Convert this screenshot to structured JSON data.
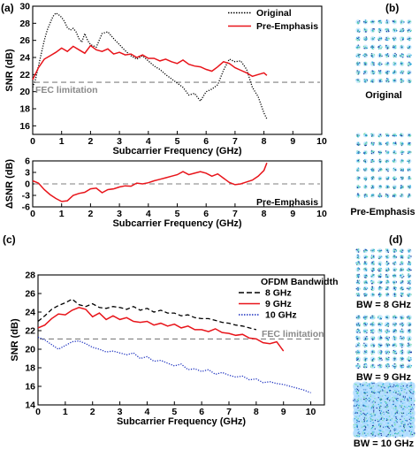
{
  "panel_labels": {
    "a": "(a)",
    "b": "(b)",
    "c": "(c)",
    "d": "(d)"
  },
  "colors": {
    "original": "#000000",
    "pre_emphasis": "#e8141a",
    "bw8": "#000000",
    "bw9": "#e8141a",
    "bw10": "#1a2fbf",
    "fec": "#7f7f7f",
    "fec_text": "#8a8a8a"
  },
  "chart_data": [
    {
      "id": "a-top",
      "type": "line",
      "xlabel": "Subcarrier Frequency (GHz)",
      "ylabel": "SNR (dB)",
      "xlim": [
        0,
        10
      ],
      "ylim": [
        15,
        30
      ],
      "xticks": [
        0,
        1,
        2,
        3,
        4,
        5,
        6,
        7,
        8,
        9,
        10
      ],
      "yticks": [
        16,
        18,
        20,
        22,
        24,
        26,
        28,
        30
      ],
      "legend": "top-right",
      "annotation": "FEC limitation",
      "fec": 21.1,
      "series": [
        {
          "name": "Original",
          "style": "dotted",
          "color": "#000000",
          "x": [
            0.0,
            0.1,
            0.2,
            0.3,
            0.4,
            0.5,
            0.6,
            0.7,
            0.8,
            0.9,
            1.0,
            1.1,
            1.2,
            1.3,
            1.4,
            1.5,
            1.6,
            1.7,
            1.8,
            1.9,
            2.0,
            2.2,
            2.4,
            2.6,
            2.8,
            3.0,
            3.2,
            3.4,
            3.6,
            3.8,
            4.0,
            4.2,
            4.4,
            4.6,
            4.8,
            5.0,
            5.2,
            5.4,
            5.6,
            5.8,
            6.0,
            6.2,
            6.4,
            6.6,
            6.8,
            7.0,
            7.2,
            7.4,
            7.6,
            7.8,
            8.0,
            8.1
          ],
          "y": [
            20.5,
            21.5,
            23.0,
            24.5,
            26.0,
            27.2,
            28.0,
            28.8,
            29.2,
            29.0,
            28.7,
            28.2,
            27.5,
            27.2,
            27.4,
            27.0,
            26.2,
            25.8,
            26.8,
            26.0,
            25.5,
            25.2,
            26.8,
            27.0,
            26.2,
            25.5,
            24.8,
            24.2,
            23.8,
            24.2,
            23.6,
            23.0,
            22.6,
            22.0,
            21.5,
            21.0,
            20.5,
            19.6,
            19.8,
            18.9,
            20.0,
            20.3,
            20.8,
            22.5,
            23.8,
            23.5,
            23.6,
            22.6,
            20.5,
            19.4,
            17.5,
            16.8
          ]
        },
        {
          "name": "Pre-Emphasis",
          "style": "solid",
          "color": "#e8141a",
          "x": [
            0.0,
            0.2,
            0.4,
            0.6,
            0.8,
            1.0,
            1.2,
            1.4,
            1.6,
            1.8,
            2.0,
            2.2,
            2.4,
            2.6,
            2.8,
            3.0,
            3.2,
            3.4,
            3.6,
            3.8,
            4.0,
            4.2,
            4.4,
            4.6,
            4.8,
            5.0,
            5.2,
            5.4,
            5.6,
            5.8,
            6.0,
            6.2,
            6.4,
            6.6,
            6.8,
            7.0,
            7.2,
            7.4,
            7.6,
            7.8,
            8.0,
            8.1
          ],
          "y": [
            21.4,
            22.8,
            23.8,
            24.2,
            24.6,
            25.1,
            24.7,
            25.3,
            24.9,
            24.5,
            25.4,
            24.9,
            24.7,
            25.0,
            24.4,
            24.6,
            24.3,
            24.4,
            24.0,
            24.3,
            23.9,
            23.9,
            23.6,
            23.8,
            23.5,
            23.3,
            23.7,
            23.2,
            23.0,
            22.9,
            22.6,
            22.4,
            22.9,
            23.5,
            23.3,
            22.8,
            22.5,
            22.2,
            21.8,
            22.0,
            22.2,
            21.9
          ]
        }
      ]
    },
    {
      "id": "a-bottom",
      "type": "line",
      "xlabel": "Subcarrier Frequency (GHz)",
      "ylabel": "ΔSNR (dB)",
      "xlim": [
        0,
        10
      ],
      "ylim": [
        -6,
        6
      ],
      "xticks": [
        0,
        1,
        2,
        3,
        4,
        5,
        6,
        7,
        8,
        9,
        10
      ],
      "yticks": [
        -6,
        -3,
        0,
        3,
        6
      ],
      "annotation": "Pre-Emphasis",
      "series": [
        {
          "name": "",
          "style": "solid",
          "color": "#e8141a",
          "x": [
            0.0,
            0.2,
            0.4,
            0.6,
            0.8,
            1.0,
            1.2,
            1.4,
            1.6,
            1.8,
            2.0,
            2.2,
            2.4,
            2.6,
            2.8,
            3.0,
            3.2,
            3.4,
            3.6,
            3.8,
            4.0,
            4.2,
            4.4,
            4.6,
            4.8,
            5.0,
            5.2,
            5.4,
            5.6,
            5.8,
            6.0,
            6.2,
            6.4,
            6.6,
            6.8,
            7.0,
            7.2,
            7.4,
            7.6,
            7.8,
            8.0,
            8.1
          ],
          "y": [
            0.8,
            0.2,
            -1.5,
            -2.8,
            -3.8,
            -4.6,
            -4.4,
            -3.0,
            -2.5,
            -2.2,
            -1.3,
            -1.1,
            -2.3,
            -1.5,
            -1.3,
            -0.8,
            -0.5,
            -0.6,
            0.2,
            0.0,
            0.3,
            0.8,
            1.2,
            1.6,
            2.0,
            2.4,
            3.2,
            2.4,
            2.8,
            3.2,
            2.8,
            2.0,
            2.6,
            1.5,
            0.4,
            -0.2,
            0.0,
            0.5,
            1.0,
            2.0,
            3.5,
            5.5
          ]
        }
      ]
    },
    {
      "id": "c",
      "type": "line",
      "xlabel": "Subcarrier Frequency (GHz)",
      "ylabel": "SNR (dB)",
      "xlim": [
        0,
        10.5
      ],
      "ylim": [
        14,
        28
      ],
      "xticks": [
        0,
        1,
        2,
        3,
        4,
        5,
        6,
        7,
        8,
        9,
        10
      ],
      "yticks": [
        14,
        16,
        18,
        20,
        22,
        24,
        26,
        28
      ],
      "legend": "top-right",
      "legend_title": "OFDM Bandwidth",
      "annotation": "FEC limitation",
      "fec": 21.1,
      "series": [
        {
          "name": "8 GHz",
          "style": "dashed",
          "color": "#000000",
          "x": [
            0.0,
            0.25,
            0.5,
            0.75,
            1.0,
            1.25,
            1.5,
            1.75,
            2.0,
            2.25,
            2.5,
            2.75,
            3.0,
            3.25,
            3.5,
            3.75,
            4.0,
            4.25,
            4.5,
            4.75,
            5.0,
            5.25,
            5.5,
            5.75,
            6.0,
            6.25,
            6.5,
            6.75,
            7.0,
            7.25,
            7.5,
            7.75,
            8.0
          ],
          "y": [
            23.0,
            23.6,
            24.3,
            24.7,
            25.0,
            25.4,
            24.8,
            24.6,
            24.9,
            24.5,
            24.4,
            24.6,
            24.5,
            24.3,
            24.6,
            24.2,
            24.4,
            24.0,
            24.2,
            23.9,
            23.9,
            23.6,
            23.7,
            23.4,
            23.3,
            23.3,
            23.1,
            22.9,
            22.8,
            22.6,
            22.5,
            22.3,
            22.1
          ]
        },
        {
          "name": "9 GHz",
          "style": "solid",
          "color": "#e8141a",
          "x": [
            0.0,
            0.25,
            0.5,
            0.75,
            1.0,
            1.25,
            1.5,
            1.75,
            2.0,
            2.25,
            2.5,
            2.75,
            3.0,
            3.25,
            3.5,
            3.75,
            4.0,
            4.25,
            4.5,
            4.75,
            5.0,
            5.25,
            5.5,
            5.75,
            6.0,
            6.25,
            6.5,
            6.75,
            7.0,
            7.25,
            7.5,
            7.75,
            8.0,
            8.25,
            8.5,
            8.75,
            9.0
          ],
          "y": [
            22.3,
            22.6,
            23.3,
            23.8,
            23.7,
            24.2,
            24.5,
            24.3,
            23.5,
            23.9,
            23.2,
            23.6,
            23.2,
            23.4,
            23.0,
            22.9,
            23.0,
            22.6,
            22.8,
            22.5,
            22.7,
            22.3,
            22.5,
            22.1,
            22.1,
            21.9,
            22.2,
            21.8,
            21.7,
            21.5,
            21.6,
            21.2,
            21.1,
            20.7,
            20.6,
            20.8,
            19.8
          ]
        },
        {
          "name": "10 GHz",
          "style": "dotted",
          "color": "#1a2fbf",
          "x": [
            0.0,
            0.25,
            0.5,
            0.75,
            1.0,
            1.25,
            1.5,
            1.75,
            2.0,
            2.25,
            2.5,
            2.75,
            3.0,
            3.25,
            3.5,
            3.75,
            4.0,
            4.25,
            4.5,
            4.75,
            5.0,
            5.25,
            5.5,
            5.75,
            6.0,
            6.25,
            6.5,
            6.75,
            7.0,
            7.25,
            7.5,
            7.75,
            8.0,
            8.25,
            8.5,
            8.75,
            9.0,
            9.25,
            9.5,
            9.75,
            10.0
          ],
          "y": [
            21.3,
            21.0,
            20.5,
            20.0,
            20.4,
            20.8,
            20.9,
            20.6,
            20.2,
            20.0,
            19.7,
            19.8,
            19.6,
            19.4,
            19.6,
            19.0,
            19.2,
            18.7,
            18.8,
            18.5,
            18.2,
            18.4,
            17.8,
            17.9,
            17.6,
            17.8,
            17.3,
            17.5,
            17.2,
            17.0,
            17.1,
            16.7,
            16.8,
            16.4,
            16.5,
            16.3,
            16.2,
            16.0,
            15.8,
            15.6,
            15.3
          ]
        }
      ]
    }
  ],
  "constellations": {
    "original": "Original",
    "pre_emphasis": "Pre-Emphasis",
    "bw8": "BW = 8 GHz",
    "bw9": "BW = 9 GHz",
    "bw10": "BW = 10 GHz"
  }
}
